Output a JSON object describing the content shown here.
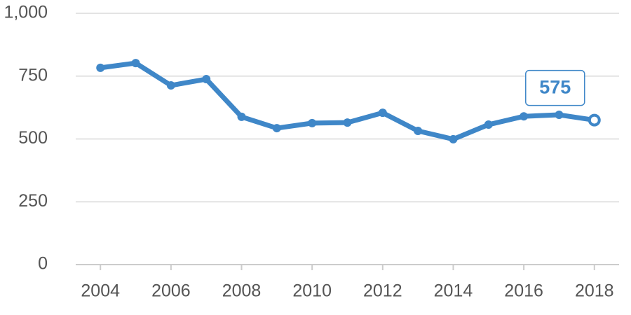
{
  "chart_data": {
    "type": "line",
    "x": [
      2004,
      2005,
      2006,
      2007,
      2008,
      2009,
      2010,
      2011,
      2012,
      2013,
      2014,
      2015,
      2016,
      2017,
      2018
    ],
    "values": [
      783,
      802,
      713,
      738,
      588,
      543,
      563,
      565,
      604,
      532,
      499,
      557,
      590,
      596,
      575
    ],
    "color": "#3f87c8",
    "xlim": [
      2003.3,
      2018.7
    ],
    "xticks": [
      2004,
      2006,
      2008,
      2010,
      2012,
      2014,
      2016,
      2018
    ],
    "ylim": [
      0,
      1000
    ],
    "yticks": [
      0,
      250,
      500,
      750,
      {
        "value": 1000,
        "label": "1,000"
      }
    ],
    "grid": true
  }
}
